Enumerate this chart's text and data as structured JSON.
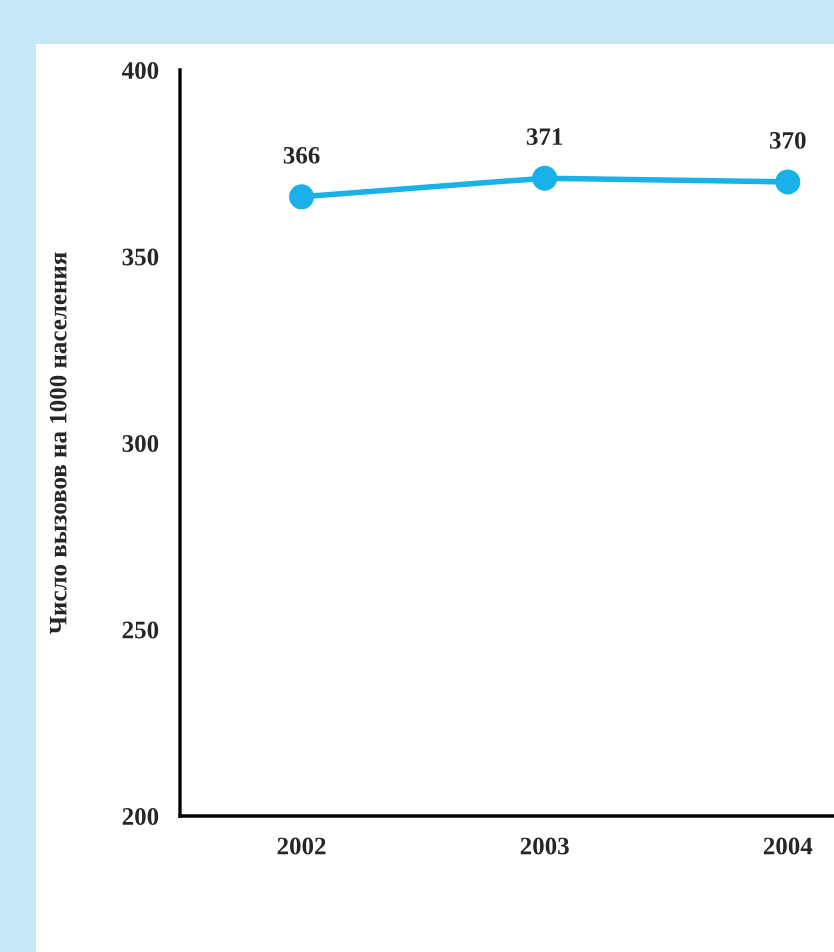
{
  "chart_data": {
    "type": "line",
    "ylabel": "Число вызовов на 1000 населения",
    "categories": [
      "2002",
      "2003",
      "2004"
    ],
    "series": [
      {
        "color": "#1ab0e8",
        "values": [
          366,
          371,
          370
        ]
      }
    ],
    "ylim": [
      200,
      400
    ],
    "yticks": [
      200,
      250,
      300,
      350,
      400
    ],
    "data_labels": true,
    "marker": "circle",
    "line_style": "solid",
    "grid": false,
    "legend": false
  }
}
